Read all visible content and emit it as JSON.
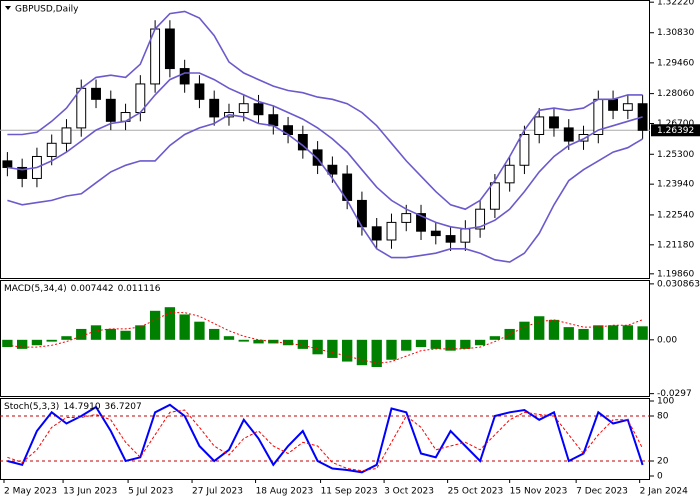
{
  "chart_data": [
    {
      "type": "candlestick",
      "title": "GBPUSD,Daily",
      "xlim": [
        -0.5,
        43.5
      ],
      "ylim": [
        1.1967,
        1.3232
      ],
      "yticks": [
        {
          "value": 1.3222,
          "label": "1.32220"
        },
        {
          "value": 1.3083,
          "label": "1.30830"
        },
        {
          "value": 1.2946,
          "label": "1.29460"
        },
        {
          "value": 1.2806,
          "label": "1.28060"
        },
        {
          "value": 1.267,
          "label": "1.26700"
        },
        {
          "value": 1.253,
          "label": "1.25300"
        },
        {
          "value": 1.2394,
          "label": "1.23940"
        },
        {
          "value": 1.2254,
          "label": "1.22540"
        },
        {
          "value": 1.2118,
          "label": "1.21180"
        },
        {
          "value": 1.1986,
          "label": "1.19860"
        }
      ],
      "last_price": {
        "value": 1.26392,
        "label": "1.26392"
      },
      "open": [
        1.25,
        1.247,
        1.242,
        1.252,
        1.258,
        1.265,
        1.283,
        1.278,
        1.268,
        1.272,
        1.285,
        1.31,
        1.292,
        1.285,
        1.278,
        1.27,
        1.272,
        1.276,
        1.271,
        1.266,
        1.262,
        1.255,
        1.248,
        1.244,
        1.232,
        1.22,
        1.214,
        1.222,
        1.226,
        1.218,
        1.216,
        1.213,
        1.219,
        1.228,
        1.24,
        1.248,
        1.262,
        1.27,
        1.265,
        1.259,
        1.262,
        1.278,
        1.273,
        1.276
      ],
      "high": [
        1.254,
        1.251,
        1.256,
        1.262,
        1.269,
        1.287,
        1.287,
        1.282,
        1.276,
        1.289,
        1.314,
        1.314,
        1.296,
        1.289,
        1.282,
        1.276,
        1.28,
        1.28,
        1.275,
        1.27,
        1.266,
        1.259,
        1.252,
        1.248,
        1.236,
        1.224,
        1.226,
        1.23,
        1.23,
        1.222,
        1.22,
        1.223,
        1.232,
        1.244,
        1.252,
        1.266,
        1.274,
        1.274,
        1.269,
        1.266,
        1.282,
        1.282,
        1.28,
        1.28
      ],
      "low": [
        1.243,
        1.238,
        1.238,
        1.248,
        1.254,
        1.261,
        1.274,
        1.264,
        1.264,
        1.268,
        1.281,
        1.288,
        1.281,
        1.274,
        1.266,
        1.266,
        1.268,
        1.267,
        1.262,
        1.258,
        1.251,
        1.244,
        1.24,
        1.228,
        1.216,
        1.21,
        1.21,
        1.218,
        1.214,
        1.212,
        1.209,
        1.209,
        1.215,
        1.224,
        1.236,
        1.244,
        1.258,
        1.261,
        1.255,
        1.255,
        1.258,
        1.269,
        1.269,
        1.26
      ],
      "close": [
        1.247,
        1.242,
        1.252,
        1.258,
        1.265,
        1.283,
        1.278,
        1.268,
        1.272,
        1.285,
        1.31,
        1.292,
        1.285,
        1.278,
        1.27,
        1.272,
        1.276,
        1.271,
        1.266,
        1.262,
        1.255,
        1.248,
        1.244,
        1.232,
        1.22,
        1.214,
        1.222,
        1.226,
        1.218,
        1.216,
        1.213,
        1.219,
        1.228,
        1.24,
        1.248,
        1.262,
        1.27,
        1.265,
        1.259,
        1.262,
        1.278,
        1.273,
        1.276,
        1.2639
      ],
      "bands": [
        {
          "color": "#6a5acd",
          "values": [
            1.262,
            1.262,
            1.263,
            1.268,
            1.274,
            1.283,
            1.288,
            1.289,
            1.288,
            1.294,
            1.31,
            1.317,
            1.318,
            1.315,
            1.307,
            1.295,
            1.29,
            1.287,
            1.284,
            1.282,
            1.281,
            1.279,
            1.278,
            1.276,
            1.272,
            1.266,
            1.258,
            1.25,
            1.243,
            1.236,
            1.23,
            1.228,
            1.232,
            1.241,
            1.252,
            1.264,
            1.273,
            1.274,
            1.273,
            1.274,
            1.278,
            1.278,
            1.28,
            1.28
          ]
        },
        {
          "color": "#6a5acd",
          "values": [
            1.247,
            1.246,
            1.247,
            1.25,
            1.254,
            1.259,
            1.264,
            1.267,
            1.268,
            1.272,
            1.28,
            1.287,
            1.29,
            1.29,
            1.287,
            1.283,
            1.28,
            1.277,
            1.275,
            1.272,
            1.269,
            1.265,
            1.26,
            1.254,
            1.246,
            1.238,
            1.232,
            1.228,
            1.225,
            1.222,
            1.22,
            1.219,
            1.22,
            1.223,
            1.228,
            1.236,
            1.245,
            1.252,
            1.257,
            1.26,
            1.264,
            1.266,
            1.268,
            1.27
          ]
        },
        {
          "color": "#6a5acd",
          "values": [
            1.232,
            1.23,
            1.231,
            1.232,
            1.234,
            1.235,
            1.24,
            1.245,
            1.248,
            1.25,
            1.25,
            1.257,
            1.262,
            1.265,
            1.267,
            1.271,
            1.27,
            1.267,
            1.266,
            1.262,
            1.257,
            1.251,
            1.242,
            1.232,
            1.22,
            1.21,
            1.206,
            1.206,
            1.207,
            1.208,
            1.21,
            1.21,
            1.208,
            1.205,
            1.204,
            1.208,
            1.217,
            1.23,
            1.241,
            1.246,
            1.25,
            1.254,
            1.256,
            1.26
          ]
        }
      ]
    },
    {
      "type": "macd",
      "title": "MACD(5,34,4)",
      "xlim": [
        -0.5,
        43.5
      ],
      "ylim": [
        -0.031,
        0.033
      ],
      "yticks": [
        0.030863,
        {
          "value": 0,
          "label": "0.00"
        },
        -0.0297
      ],
      "series": [
        {
          "style": "bar",
          "color": "#008000",
          "values": [
            -0.004,
            -0.005,
            -0.003,
            -0.001,
            0.002,
            0.006,
            0.008,
            0.006,
            0.005,
            0.008,
            0.016,
            0.018,
            0.014,
            0.01,
            0.006,
            0.002,
            -0.001,
            -0.002,
            -0.002,
            -0.003,
            -0.005,
            -0.008,
            -0.01,
            -0.012,
            -0.014,
            -0.015,
            -0.011,
            -0.006,
            -0.004,
            -0.005,
            -0.006,
            -0.005,
            -0.003,
            0.002,
            0.006,
            0.01,
            0.013,
            0.011,
            0.007,
            0.006,
            0.008,
            0.008,
            0.008,
            0.007442
          ]
        },
        {
          "style": "dotted",
          "color": "#ff0000",
          "values": [
            -0.003,
            -0.004,
            -0.004,
            -0.003,
            -0.001,
            0.002,
            0.005,
            0.006,
            0.006,
            0.007,
            0.011,
            0.015,
            0.015,
            0.013,
            0.009,
            0.005,
            0.002,
            0.0,
            -0.001,
            -0.002,
            -0.003,
            -0.005,
            -0.007,
            -0.009,
            -0.011,
            -0.013,
            -0.012,
            -0.009,
            -0.006,
            -0.005,
            -0.005,
            -0.005,
            -0.004,
            -0.001,
            0.003,
            0.007,
            0.01,
            0.011,
            0.009,
            0.007,
            0.007,
            0.008,
            0.008,
            0.011116
          ]
        }
      ]
    },
    {
      "type": "line",
      "title": "Stoch(5,3,3)",
      "readout": [
        "14.7910",
        "36.7207"
      ],
      "xlim": [
        -0.5,
        43.5
      ],
      "ylim": [
        -4,
        104
      ],
      "yticks": [
        100,
        80,
        20,
        0
      ],
      "levels": [
        80,
        20
      ],
      "level_color": "#c00000",
      "xticks": [
        {
          "value": -0.23,
          "label": "2 May 2023"
        },
        {
          "value": 3.77,
          "label": "13 Jun 2023"
        },
        {
          "value": 8.17,
          "label": "5 Jul 2023"
        },
        {
          "value": 12.5,
          "label": "27 Jul 2023"
        },
        {
          "value": 16.8,
          "label": "18 Aug 2023"
        },
        {
          "value": 21.2,
          "label": "11 Sep 2023"
        },
        {
          "value": 25.5,
          "label": "3 Oct 2023"
        },
        {
          "value": 29.8,
          "label": "25 Oct 2023"
        },
        {
          "value": 34.0,
          "label": "15 Nov 2023"
        },
        {
          "value": 38.5,
          "label": "7 Dec 2023"
        },
        {
          "value": 42.8,
          "label": "2 Jan 2024"
        }
      ],
      "series": [
        {
          "style": "solid",
          "color": "#0000ff",
          "values": [
            20,
            15,
            60,
            85,
            70,
            80,
            92,
            60,
            20,
            25,
            85,
            95,
            80,
            40,
            20,
            35,
            75,
            50,
            15,
            40,
            60,
            20,
            10,
            8,
            5,
            15,
            90,
            85,
            30,
            25,
            60,
            40,
            20,
            80,
            85,
            88,
            75,
            85,
            20,
            30,
            85,
            70,
            75,
            14.791
          ]
        },
        {
          "style": "dashed",
          "color": "#ff0000",
          "values": [
            25,
            18,
            35,
            65,
            78,
            78,
            82,
            75,
            45,
            25,
            55,
            85,
            88,
            65,
            40,
            28,
            50,
            60,
            40,
            30,
            45,
            40,
            18,
            10,
            7,
            10,
            45,
            80,
            65,
            35,
            40,
            45,
            35,
            55,
            75,
            85,
            82,
            80,
            55,
            30,
            55,
            75,
            75,
            36.7207
          ]
        }
      ]
    }
  ]
}
